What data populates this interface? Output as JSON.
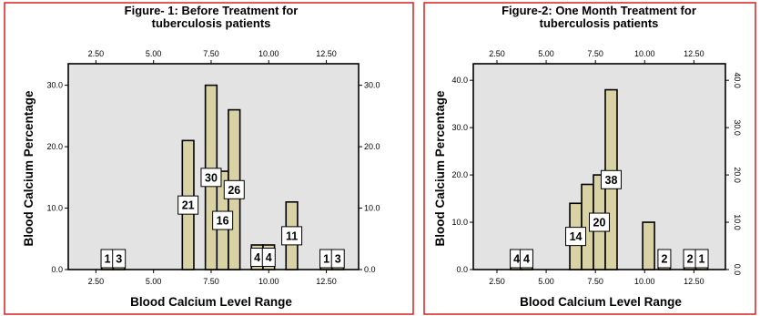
{
  "chart_data": [
    {
      "type": "bar",
      "title": "Figure- 1: Before Treatment for tuberculosis patients",
      "title_lines": [
        "Figure- 1: Before Treatment for",
        "tuberculosis patients"
      ],
      "xlabel": "Blood Calcium Level Range",
      "ylabel": "Blood Calcium Percentage",
      "xlim": [
        1.3,
        13.9
      ],
      "ylim": [
        0,
        33.5
      ],
      "xticks": [
        2.5,
        5.0,
        7.5,
        10.0,
        12.5
      ],
      "xtick_labels": [
        "2.50",
        "5.00",
        "7.50",
        "10.00",
        "12.50"
      ],
      "yticks": [
        0,
        10,
        20,
        30
      ],
      "ytick_labels": [
        "0.0",
        "10.0",
        "20.0",
        "30.0"
      ],
      "bar_width": 0.5,
      "bars": [
        {
          "x": 3.0,
          "value": 1,
          "label": "1"
        },
        {
          "x": 3.5,
          "value": 3,
          "label": "3"
        },
        {
          "x": 6.5,
          "value": 21,
          "label": "21"
        },
        {
          "x": 7.5,
          "value": 30,
          "label": "30"
        },
        {
          "x": 8.0,
          "value": 16,
          "label": "16"
        },
        {
          "x": 8.5,
          "value": 26,
          "label": "26"
        },
        {
          "x": 9.5,
          "value": 4,
          "label": "4"
        },
        {
          "x": 10.0,
          "value": 4,
          "label": "4"
        },
        {
          "x": 11.0,
          "value": 11,
          "label": "11"
        },
        {
          "x": 12.5,
          "value": 1,
          "label": "1"
        },
        {
          "x": 13.0,
          "value": 3,
          "label": "3"
        }
      ],
      "grid": false,
      "right_axis_duplicate": true,
      "top_axis_duplicate": true,
      "right_tick_rotation": 0,
      "colors": {
        "bar": "#d9d2a4",
        "plot_background": "#e3e3e3",
        "frame": "#d92020"
      }
    },
    {
      "type": "bar",
      "title": "Figure-2: One Month Treatment for tuberculosis patients",
      "title_lines": [
        "Figure-2: One Month Treatment for",
        "tuberculosis patients"
      ],
      "xlabel": "Blood Calcium Level Range",
      "ylabel": "Blood Calcium Percentage",
      "xlim": [
        1.3,
        14.1
      ],
      "ylim": [
        0,
        43.5
      ],
      "xticks": [
        2.5,
        5.0,
        7.5,
        10.0,
        12.5
      ],
      "xtick_labels": [
        "2.50",
        "5.00",
        "7.50",
        "10.00",
        "12.50"
      ],
      "yticks": [
        0,
        10,
        20,
        30,
        40
      ],
      "ytick_labels": [
        "0.0",
        "10.0",
        "20.0",
        "30.0",
        "40.0"
      ],
      "bar_width": 0.6,
      "bars": [
        {
          "x": 3.5,
          "value": 4,
          "label": "4"
        },
        {
          "x": 4.0,
          "value": 4,
          "label": "4"
        },
        {
          "x": 6.5,
          "value": 14,
          "label": "14"
        },
        {
          "x": 7.1,
          "value": 18,
          "label": ""
        },
        {
          "x": 7.7,
          "value": 20,
          "label": "20"
        },
        {
          "x": 8.3,
          "value": 38,
          "label": "38"
        },
        {
          "x": 10.2,
          "value": 10,
          "label": ""
        },
        {
          "x": 11.0,
          "value": 2,
          "label": "2"
        },
        {
          "x": 12.3,
          "value": 2,
          "label": "2"
        },
        {
          "x": 12.9,
          "value": 1,
          "label": "1"
        }
      ],
      "grid": false,
      "right_axis_duplicate": true,
      "top_axis_duplicate": true,
      "right_tick_rotation": 90,
      "colors": {
        "bar": "#d9d2a4",
        "plot_background": "#e3e3e3",
        "frame": "#d92020"
      }
    }
  ]
}
